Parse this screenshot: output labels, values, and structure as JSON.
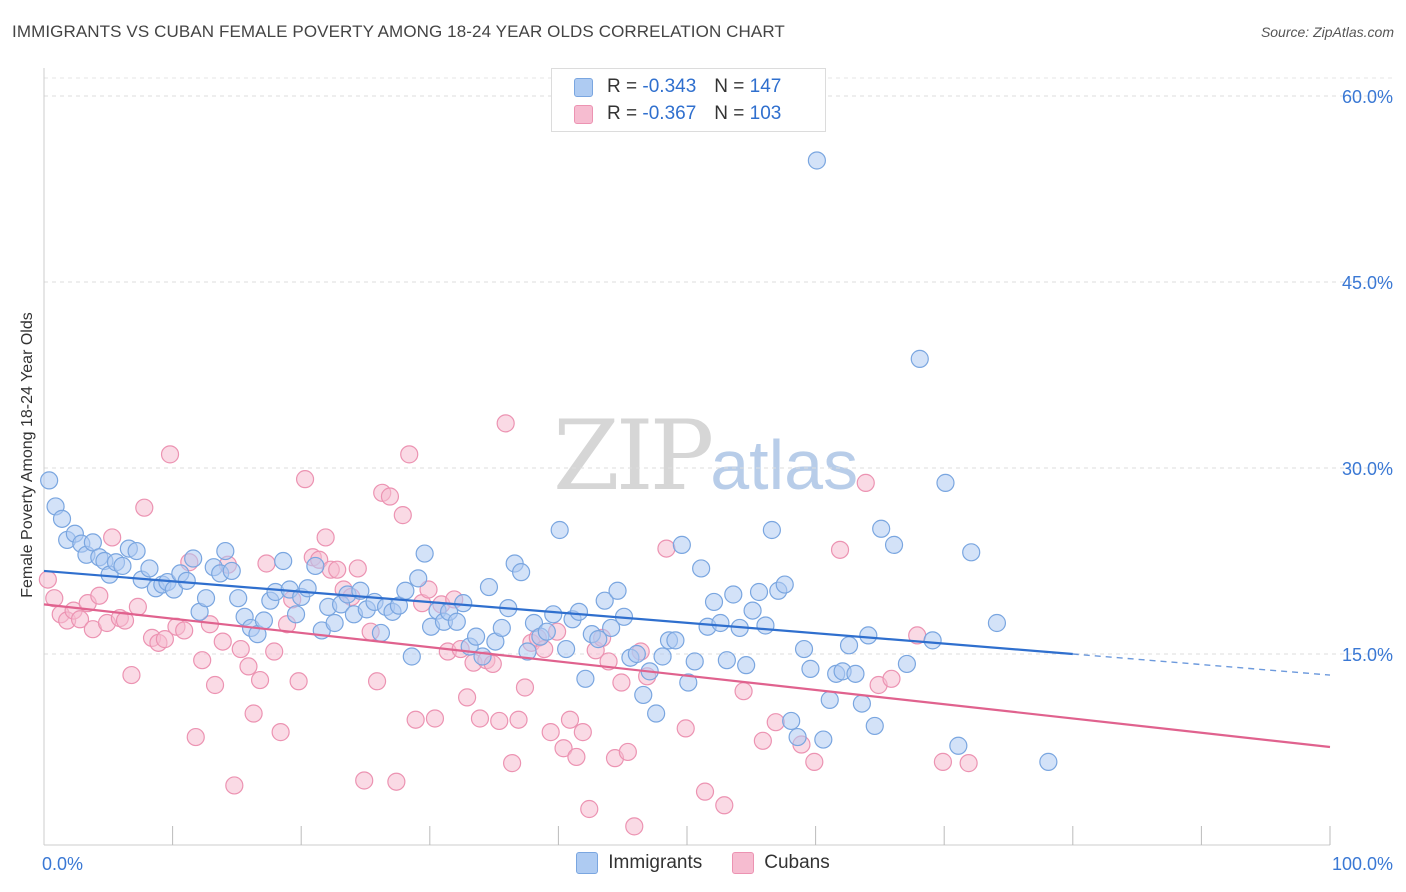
{
  "title": "IMMIGRANTS VS CUBAN FEMALE POVERTY AMONG 18-24 YEAR OLDS CORRELATION CHART",
  "source": "Source: ZipAtlas.com",
  "watermark": {
    "zip": "ZIP",
    "atlas": "atlas"
  },
  "legend": {
    "rows": [
      {
        "r_label": "R =",
        "r_value": "-0.343",
        "n_label": "N =",
        "n_value": "147"
      },
      {
        "r_label": "R =",
        "r_value": "-0.367",
        "n_label": "N =",
        "n_value": "103"
      }
    ]
  },
  "bottom_legend": {
    "immigrants": "Immigrants",
    "cubans": "Cubans"
  },
  "chart_data": {
    "type": "scatter",
    "title": "IMMIGRANTS VS CUBAN FEMALE POVERTY AMONG 18-24 YEAR OLDS CORRELATION CHART",
    "xlabel": "",
    "ylabel": "Female Poverty Among 18-24 Year Olds",
    "xlim": [
      0,
      100
    ],
    "ylim": [
      0,
      60
    ],
    "x_tick_labels": [
      "0.0%",
      "100.0%"
    ],
    "y_ticks": [
      15,
      30,
      45,
      60
    ],
    "y_tick_labels": [
      "15.0%",
      "30.0%",
      "45.0%",
      "60.0%"
    ],
    "grid": true,
    "legend_position": "top-center",
    "colors": {
      "immigrants_fill": "#aecbf2",
      "immigrants_stroke": "#7aa6e0",
      "immigrants_line": "#2f6fce",
      "cubans_fill": "#f6bcd0",
      "cubans_stroke": "#ec93b2",
      "cubans_line": "#e0628e"
    },
    "series": [
      {
        "name": "Immigrants",
        "trend": {
          "x0": 0,
          "y0": 21.7,
          "x1": 80,
          "y1": 15.0,
          "dash_to_x": 100,
          "dash_to_y": 13.3
        },
        "points": [
          [
            0.4,
            29.0
          ],
          [
            0.9,
            26.9
          ],
          [
            1.4,
            25.9
          ],
          [
            1.8,
            24.2
          ],
          [
            2.4,
            24.7
          ],
          [
            2.9,
            23.9
          ],
          [
            3.3,
            23.0
          ],
          [
            3.8,
            24.0
          ],
          [
            4.3,
            22.8
          ],
          [
            4.7,
            22.5
          ],
          [
            5.1,
            21.4
          ],
          [
            5.6,
            22.4
          ],
          [
            6.1,
            22.1
          ],
          [
            6.6,
            23.5
          ],
          [
            7.2,
            23.3
          ],
          [
            7.6,
            21.0
          ],
          [
            8.2,
            21.9
          ],
          [
            8.7,
            20.3
          ],
          [
            9.2,
            20.6
          ],
          [
            9.6,
            20.8
          ],
          [
            10.1,
            20.2
          ],
          [
            10.6,
            21.5
          ],
          [
            11.1,
            20.9
          ],
          [
            11.6,
            22.7
          ],
          [
            12.1,
            18.4
          ],
          [
            12.6,
            19.5
          ],
          [
            13.2,
            22.0
          ],
          [
            13.7,
            21.5
          ],
          [
            14.1,
            23.3
          ],
          [
            14.6,
            21.7
          ],
          [
            15.1,
            19.5
          ],
          [
            15.6,
            18.0
          ],
          [
            16.1,
            17.1
          ],
          [
            16.6,
            16.6
          ],
          [
            17.1,
            17.7
          ],
          [
            17.6,
            19.3
          ],
          [
            18.0,
            20.0
          ],
          [
            18.6,
            22.5
          ],
          [
            19.1,
            20.2
          ],
          [
            19.6,
            18.2
          ],
          [
            20.0,
            19.6
          ],
          [
            20.5,
            20.3
          ],
          [
            21.1,
            22.1
          ],
          [
            21.6,
            16.9
          ],
          [
            22.1,
            18.8
          ],
          [
            22.6,
            17.5
          ],
          [
            23.1,
            19.0
          ],
          [
            23.6,
            19.8
          ],
          [
            24.1,
            18.2
          ],
          [
            24.6,
            20.1
          ],
          [
            25.1,
            18.6
          ],
          [
            25.7,
            19.2
          ],
          [
            26.2,
            16.7
          ],
          [
            26.6,
            18.8
          ],
          [
            27.1,
            18.4
          ],
          [
            27.6,
            18.9
          ],
          [
            28.1,
            20.1
          ],
          [
            28.6,
            14.8
          ],
          [
            29.1,
            21.1
          ],
          [
            29.6,
            23.1
          ],
          [
            30.1,
            17.2
          ],
          [
            30.6,
            18.5
          ],
          [
            31.1,
            17.6
          ],
          [
            31.5,
            18.4
          ],
          [
            32.1,
            17.6
          ],
          [
            32.6,
            19.1
          ],
          [
            33.1,
            15.6
          ],
          [
            33.6,
            16.4
          ],
          [
            34.1,
            14.8
          ],
          [
            34.6,
            20.4
          ],
          [
            35.1,
            16.0
          ],
          [
            35.6,
            17.1
          ],
          [
            36.1,
            18.7
          ],
          [
            36.6,
            22.3
          ],
          [
            37.1,
            21.6
          ],
          [
            37.6,
            15.2
          ],
          [
            38.1,
            17.5
          ],
          [
            38.6,
            16.4
          ],
          [
            39.1,
            16.8
          ],
          [
            39.6,
            18.2
          ],
          [
            40.1,
            25.0
          ],
          [
            40.6,
            15.4
          ],
          [
            41.1,
            17.8
          ],
          [
            41.6,
            18.4
          ],
          [
            42.1,
            13.0
          ],
          [
            42.6,
            16.6
          ],
          [
            43.1,
            16.2
          ],
          [
            43.6,
            19.3
          ],
          [
            44.1,
            17.1
          ],
          [
            44.6,
            20.1
          ],
          [
            45.1,
            18.0
          ],
          [
            45.6,
            14.7
          ],
          [
            46.1,
            15.0
          ],
          [
            46.6,
            11.7
          ],
          [
            47.1,
            13.6
          ],
          [
            47.6,
            10.2
          ],
          [
            48.1,
            14.8
          ],
          [
            48.6,
            16.1
          ],
          [
            49.1,
            16.1
          ],
          [
            49.6,
            23.8
          ],
          [
            50.1,
            12.7
          ],
          [
            50.6,
            14.4
          ],
          [
            51.1,
            21.9
          ],
          [
            51.6,
            17.2
          ],
          [
            52.1,
            19.2
          ],
          [
            52.6,
            17.5
          ],
          [
            53.1,
            14.5
          ],
          [
            53.6,
            19.8
          ],
          [
            54.1,
            17.1
          ],
          [
            54.6,
            14.1
          ],
          [
            55.1,
            18.5
          ],
          [
            55.6,
            20.0
          ],
          [
            56.1,
            17.3
          ],
          [
            56.6,
            25.0
          ],
          [
            57.1,
            20.1
          ],
          [
            57.6,
            20.6
          ],
          [
            58.1,
            9.6
          ],
          [
            58.6,
            8.3
          ],
          [
            59.1,
            15.4
          ],
          [
            59.6,
            13.8
          ],
          [
            60.1,
            54.8
          ],
          [
            60.6,
            8.1
          ],
          [
            61.1,
            11.3
          ],
          [
            61.6,
            13.4
          ],
          [
            62.1,
            13.6
          ],
          [
            62.6,
            15.7
          ],
          [
            63.1,
            13.4
          ],
          [
            63.6,
            11.0
          ],
          [
            64.1,
            16.5
          ],
          [
            64.6,
            9.2
          ],
          [
            65.1,
            25.1
          ],
          [
            66.1,
            23.8
          ],
          [
            67.1,
            14.2
          ],
          [
            68.1,
            38.8
          ],
          [
            69.1,
            16.1
          ],
          [
            70.1,
            28.8
          ],
          [
            71.1,
            7.6
          ],
          [
            72.1,
            23.2
          ],
          [
            74.1,
            17.5
          ],
          [
            78.1,
            6.3
          ]
        ]
      },
      {
        "name": "Cubans",
        "trend": {
          "x0": 0,
          "y0": 19.0,
          "x1": 100,
          "y1": 7.5
        },
        "points": [
          [
            0.3,
            21.0
          ],
          [
            0.8,
            19.5
          ],
          [
            1.3,
            18.2
          ],
          [
            1.8,
            17.7
          ],
          [
            2.3,
            18.5
          ],
          [
            2.8,
            17.8
          ],
          [
            3.4,
            19.1
          ],
          [
            3.8,
            17.0
          ],
          [
            4.3,
            19.7
          ],
          [
            4.9,
            17.5
          ],
          [
            5.3,
            24.4
          ],
          [
            5.9,
            17.9
          ],
          [
            6.3,
            17.7
          ],
          [
            6.8,
            13.3
          ],
          [
            7.3,
            18.8
          ],
          [
            7.8,
            26.8
          ],
          [
            8.4,
            16.3
          ],
          [
            8.9,
            15.9
          ],
          [
            9.4,
            16.2
          ],
          [
            9.8,
            31.1
          ],
          [
            10.3,
            17.2
          ],
          [
            10.9,
            16.9
          ],
          [
            11.3,
            22.4
          ],
          [
            11.8,
            8.3
          ],
          [
            12.3,
            14.5
          ],
          [
            12.9,
            17.4
          ],
          [
            13.3,
            12.5
          ],
          [
            13.9,
            16.0
          ],
          [
            14.3,
            22.2
          ],
          [
            14.8,
            4.4
          ],
          [
            15.3,
            15.4
          ],
          [
            15.9,
            14.0
          ],
          [
            16.3,
            10.2
          ],
          [
            16.8,
            12.9
          ],
          [
            17.3,
            22.3
          ],
          [
            17.9,
            15.2
          ],
          [
            18.4,
            8.7
          ],
          [
            18.9,
            17.4
          ],
          [
            19.3,
            19.4
          ],
          [
            19.8,
            12.8
          ],
          [
            20.3,
            29.1
          ],
          [
            20.9,
            22.8
          ],
          [
            21.4,
            22.6
          ],
          [
            21.9,
            24.4
          ],
          [
            22.3,
            21.8
          ],
          [
            22.8,
            21.8
          ],
          [
            23.3,
            20.2
          ],
          [
            23.9,
            19.6
          ],
          [
            24.4,
            21.9
          ],
          [
            24.9,
            4.8
          ],
          [
            25.4,
            16.8
          ],
          [
            25.9,
            12.8
          ],
          [
            26.3,
            28.0
          ],
          [
            26.9,
            27.7
          ],
          [
            27.4,
            4.7
          ],
          [
            27.9,
            26.2
          ],
          [
            28.4,
            31.1
          ],
          [
            28.9,
            9.7
          ],
          [
            29.4,
            19.1
          ],
          [
            29.9,
            20.2
          ],
          [
            30.4,
            9.8
          ],
          [
            30.9,
            19.0
          ],
          [
            31.4,
            15.2
          ],
          [
            31.9,
            19.4
          ],
          [
            32.4,
            15.4
          ],
          [
            32.9,
            11.5
          ],
          [
            33.4,
            14.3
          ],
          [
            33.9,
            9.8
          ],
          [
            34.4,
            14.5
          ],
          [
            34.9,
            14.2
          ],
          [
            35.4,
            9.6
          ],
          [
            35.9,
            33.6
          ],
          [
            36.4,
            6.2
          ],
          [
            36.9,
            9.7
          ],
          [
            37.4,
            12.3
          ],
          [
            37.9,
            15.9
          ],
          [
            38.4,
            16.3
          ],
          [
            38.9,
            15.4
          ],
          [
            39.4,
            8.7
          ],
          [
            39.9,
            16.8
          ],
          [
            40.4,
            7.4
          ],
          [
            40.9,
            9.7
          ],
          [
            41.4,
            6.7
          ],
          [
            41.9,
            8.7
          ],
          [
            42.4,
            2.5
          ],
          [
            42.9,
            15.3
          ],
          [
            43.4,
            16.3
          ],
          [
            43.9,
            14.4
          ],
          [
            44.4,
            6.6
          ],
          [
            44.9,
            12.7
          ],
          [
            45.4,
            7.1
          ],
          [
            45.9,
            1.1
          ],
          [
            46.4,
            15.2
          ],
          [
            46.9,
            13.2
          ],
          [
            48.4,
            23.5
          ],
          [
            49.9,
            9.0
          ],
          [
            51.4,
            3.9
          ],
          [
            52.9,
            2.8
          ],
          [
            54.4,
            12.0
          ],
          [
            55.9,
            8.0
          ],
          [
            56.9,
            9.5
          ],
          [
            58.9,
            7.7
          ],
          [
            59.9,
            6.3
          ],
          [
            61.9,
            23.4
          ],
          [
            63.9,
            28.8
          ],
          [
            64.9,
            12.5
          ],
          [
            65.9,
            13.0
          ],
          [
            67.9,
            16.5
          ],
          [
            69.9,
            6.3
          ],
          [
            71.9,
            6.2
          ]
        ]
      }
    ]
  }
}
